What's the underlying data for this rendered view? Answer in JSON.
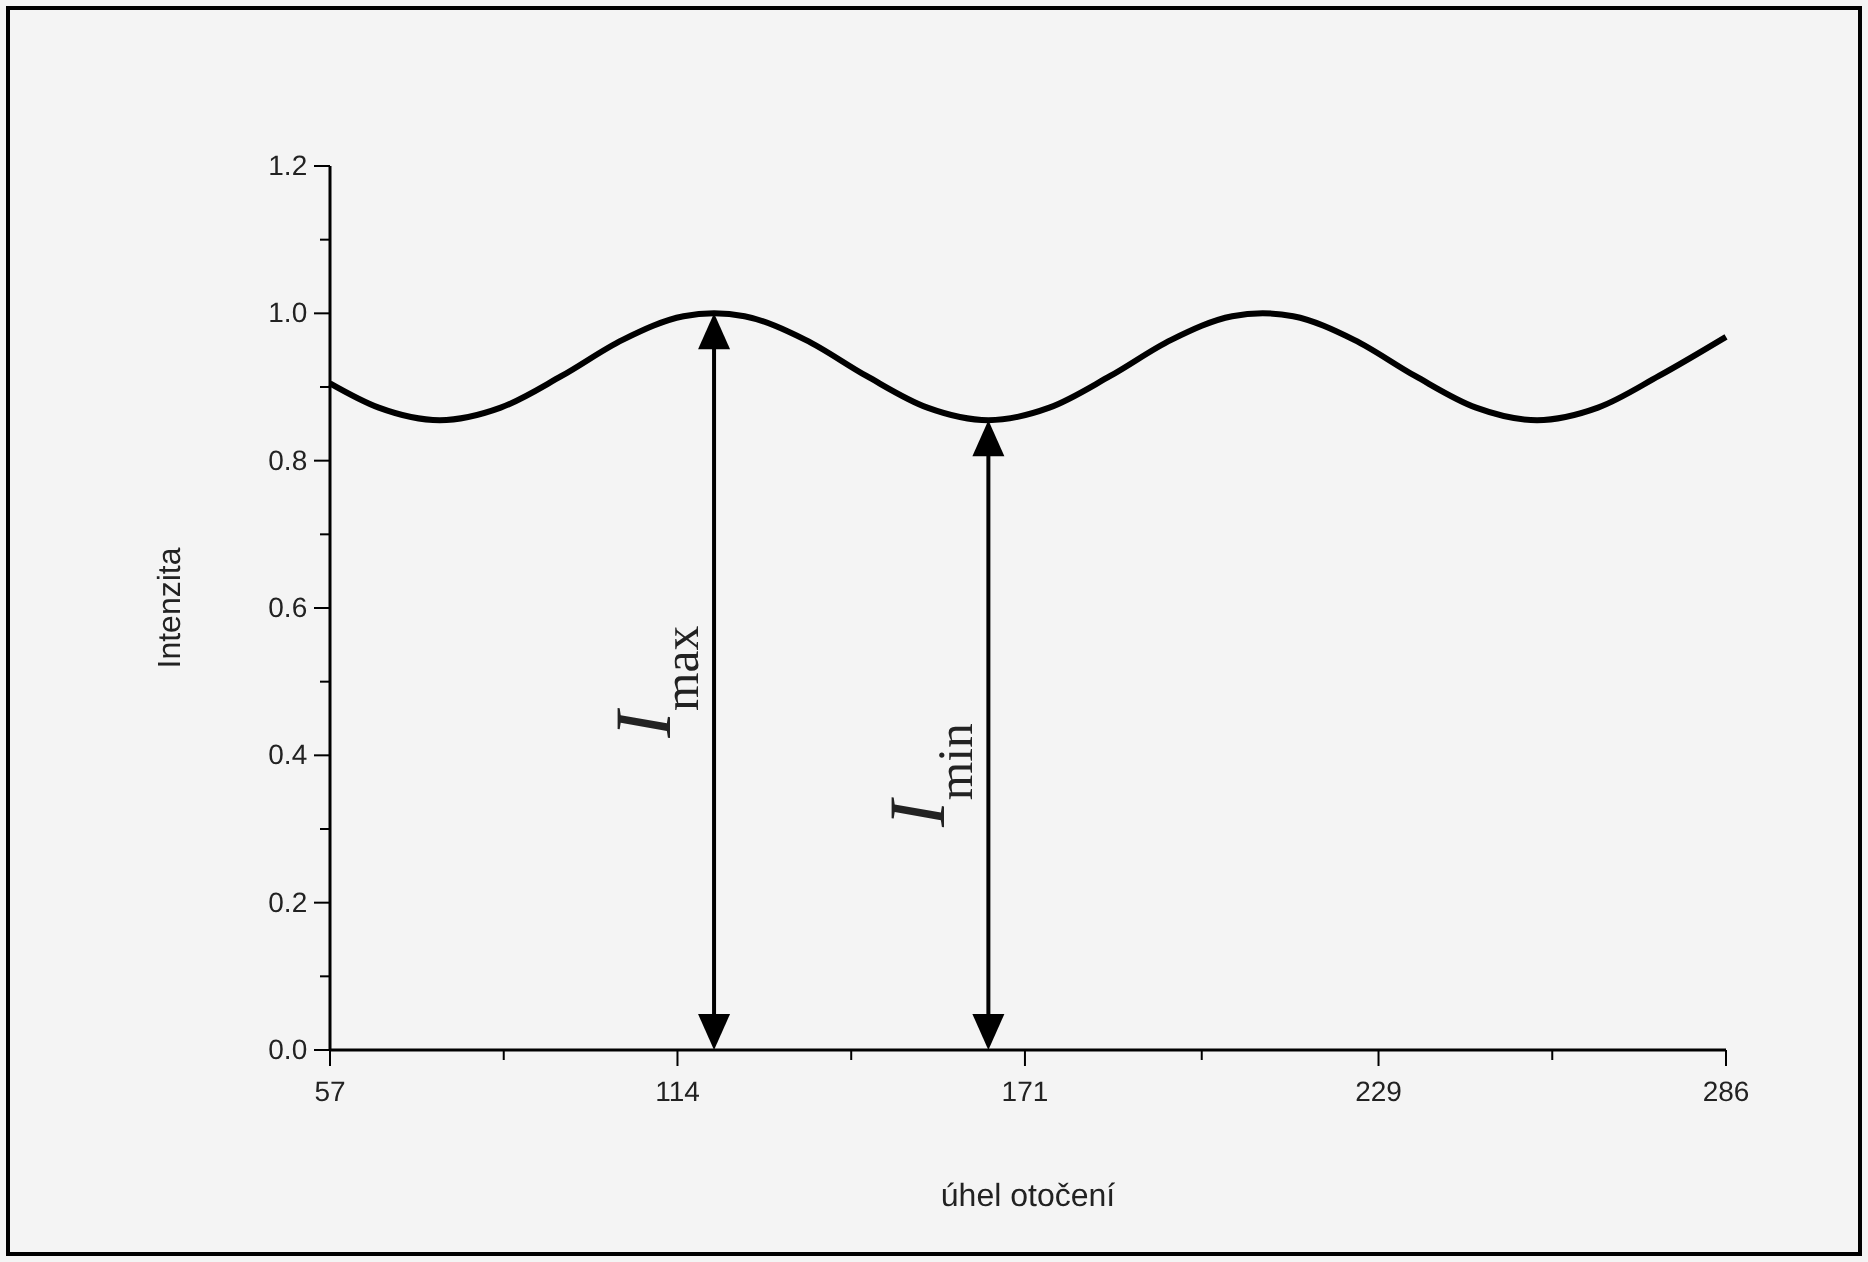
{
  "chart_data": {
    "type": "line",
    "xlabel": "úhel otočení",
    "ylabel": "Intenzita",
    "x": [
      57,
      65,
      75,
      85,
      95,
      105,
      115,
      120,
      125,
      135,
      145,
      155,
      165,
      175,
      185,
      195,
      205,
      210,
      215,
      225,
      235,
      245,
      255,
      265,
      275,
      286
    ],
    "series": [
      {
        "color": "#000000",
        "values": [
          0.905,
          0.872,
          0.855,
          0.872,
          0.915,
          0.964,
          0.996,
          1.0,
          0.996,
          0.964,
          0.915,
          0.872,
          0.855,
          0.872,
          0.915,
          0.964,
          0.996,
          1.0,
          0.996,
          0.964,
          0.915,
          0.872,
          0.855,
          0.872,
          0.915,
          0.968
        ]
      }
    ],
    "xlim": [
      57,
      286
    ],
    "ylim": [
      0,
      1.2
    ],
    "xticks": [
      57,
      {
        "value": 85.5,
        "label": null
      },
      114,
      {
        "value": 142.5,
        "label": null
      },
      171,
      {
        "value": 200,
        "label": null
      },
      229,
      {
        "value": 257.5,
        "label": null
      },
      286
    ],
    "yticks": [
      {
        "value": 0,
        "label": "0.0"
      },
      {
        "value": 0.1,
        "label": null
      },
      {
        "value": 0.2,
        "label": "0.2"
      },
      {
        "value": 0.3,
        "label": null
      },
      {
        "value": 0.4,
        "label": "0.4"
      },
      {
        "value": 0.5,
        "label": null
      },
      {
        "value": 0.6,
        "label": "0.6"
      },
      {
        "value": 0.7,
        "label": null
      },
      {
        "value": 0.8,
        "label": "0.8"
      },
      {
        "value": 0.9,
        "label": null
      },
      {
        "value": 1.0,
        "label": "1.0"
      },
      {
        "value": 1.1,
        "label": null
      },
      {
        "value": 1.2,
        "label": "1.2"
      }
    ],
    "grid": false,
    "marker": "none",
    "line_style": "solid",
    "ref_lines": [
      {
        "axis": "x",
        "value": 120,
        "label": "I$_{max}$"
      },
      {
        "axis": "x",
        "value": 165,
        "label": "I$_{min}$"
      }
    ]
  }
}
